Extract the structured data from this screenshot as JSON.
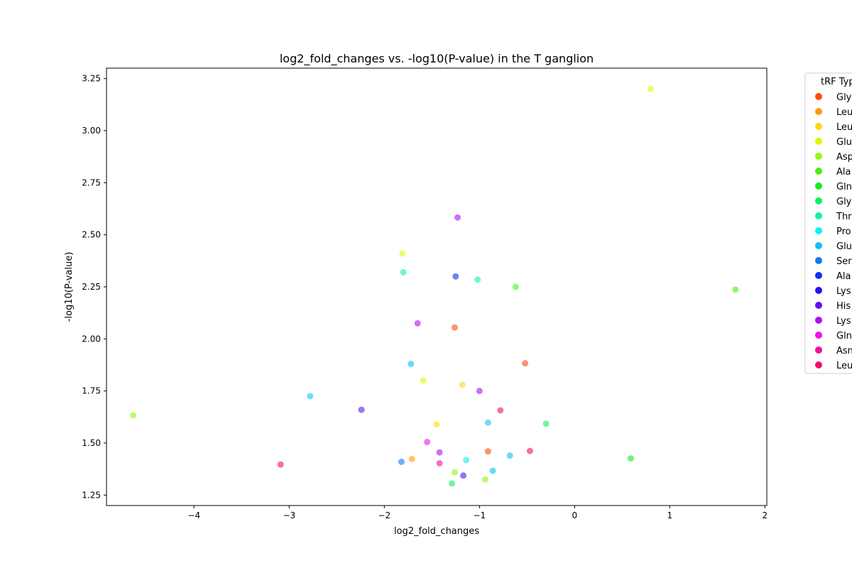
{
  "chart_data": {
    "type": "scatter",
    "title": "log2_fold_changes vs. -log10(P-value) in the T ganglion",
    "xlabel": "log2_fold_changes",
    "ylabel": "-log10(P-value)",
    "xlim": [
      -4.92,
      2.02
    ],
    "ylim": [
      1.2,
      3.3
    ],
    "xticks": [
      -4,
      -3,
      -2,
      -1,
      0,
      1,
      2
    ],
    "xtick_labels": [
      "−4",
      "−3",
      "−2",
      "−1",
      "0",
      "1",
      "2"
    ],
    "yticks": [
      1.25,
      1.5,
      1.75,
      2.0,
      2.25,
      2.5,
      2.75,
      3.0,
      3.25
    ],
    "ytick_labels": [
      "1.25",
      "1.50",
      "1.75",
      "2.00",
      "2.25",
      "2.50",
      "2.75",
      "3.00",
      "3.25"
    ],
    "grid": false,
    "legend_position": "outside-right",
    "legend_title": "tRF Typ",
    "legend": [
      {
        "label": "Gly",
        "color": "#ff4a10"
      },
      {
        "label": "Leu",
        "color": "#ff9a10"
      },
      {
        "label": "Leu",
        "color": "#ffd810"
      },
      {
        "label": "Glu",
        "color": "#d8f810"
      },
      {
        "label": "Asp",
        "color": "#90f810"
      },
      {
        "label": "Ala",
        "color": "#48f010"
      },
      {
        "label": "Gln",
        "color": "#10f018"
      },
      {
        "label": "Gly",
        "color": "#10f060"
      },
      {
        "label": "Thr",
        "color": "#10f0b0"
      },
      {
        "label": "Pro",
        "color": "#10f0f0"
      },
      {
        "label": "Glu",
        "color": "#10c0f0"
      },
      {
        "label": "Ser",
        "color": "#1078f0"
      },
      {
        "label": "Ala",
        "color": "#1030f0"
      },
      {
        "label": "Lys",
        "color": "#2810f0"
      },
      {
        "label": "His",
        "color": "#6010f0"
      },
      {
        "label": "Lys",
        "color": "#b010f0"
      },
      {
        "label": "Gln",
        "color": "#f010f0"
      },
      {
        "label": "Asn",
        "color": "#f010a0"
      },
      {
        "label": "Leu",
        "color": "#f01060"
      }
    ],
    "points": [
      {
        "x": 0.8,
        "y": 3.2,
        "color": "#d8f810"
      },
      {
        "x": -1.23,
        "y": 2.583,
        "color": "#b010f0"
      },
      {
        "x": -1.81,
        "y": 2.41,
        "color": "#d8f810"
      },
      {
        "x": -1.8,
        "y": 2.32,
        "color": "#10f0b0"
      },
      {
        "x": -1.25,
        "y": 2.3,
        "color": "#1030f0"
      },
      {
        "x": -1.02,
        "y": 2.285,
        "color": "#10f0b0"
      },
      {
        "x": -0.62,
        "y": 2.25,
        "color": "#48f010"
      },
      {
        "x": 1.69,
        "y": 2.237,
        "color": "#48f010"
      },
      {
        "x": -1.65,
        "y": 2.075,
        "color": "#b010f0"
      },
      {
        "x": -1.26,
        "y": 2.055,
        "color": "#ff4a10"
      },
      {
        "x": -1.72,
        "y": 1.88,
        "color": "#10c0f0"
      },
      {
        "x": -0.52,
        "y": 1.883,
        "color": "#ff4a10"
      },
      {
        "x": -1.59,
        "y": 1.8,
        "color": "#d8f810"
      },
      {
        "x": -1.18,
        "y": 1.78,
        "color": "#ffd810"
      },
      {
        "x": -1.0,
        "y": 1.75,
        "color": "#b010f0"
      },
      {
        "x": -2.78,
        "y": 1.725,
        "color": "#10c0f0"
      },
      {
        "x": -4.64,
        "y": 1.633,
        "color": "#90f810"
      },
      {
        "x": -2.24,
        "y": 1.66,
        "color": "#6010f0"
      },
      {
        "x": -0.78,
        "y": 1.657,
        "color": "#f01060"
      },
      {
        "x": -1.45,
        "y": 1.59,
        "color": "#ffd810"
      },
      {
        "x": -0.91,
        "y": 1.598,
        "color": "#10c0f0"
      },
      {
        "x": -0.3,
        "y": 1.593,
        "color": "#10f060"
      },
      {
        "x": -1.55,
        "y": 1.505,
        "color": "#f010f0"
      },
      {
        "x": -1.42,
        "y": 1.455,
        "color": "#b010f0"
      },
      {
        "x": -0.91,
        "y": 1.46,
        "color": "#ff4a10"
      },
      {
        "x": -0.47,
        "y": 1.462,
        "color": "#f01060"
      },
      {
        "x": -0.68,
        "y": 1.44,
        "color": "#10c0f0"
      },
      {
        "x": -1.71,
        "y": 1.423,
        "color": "#ff9a10"
      },
      {
        "x": -1.14,
        "y": 1.418,
        "color": "#10f0f0"
      },
      {
        "x": 0.59,
        "y": 1.426,
        "color": "#10f018"
      },
      {
        "x": -1.82,
        "y": 1.41,
        "color": "#1078f0"
      },
      {
        "x": -1.42,
        "y": 1.403,
        "color": "#f010a0"
      },
      {
        "x": -3.09,
        "y": 1.397,
        "color": "#f01060"
      },
      {
        "x": -0.86,
        "y": 1.367,
        "color": "#10c0f0"
      },
      {
        "x": -1.26,
        "y": 1.36,
        "color": "#90f810"
      },
      {
        "x": -1.17,
        "y": 1.344,
        "color": "#6010f0"
      },
      {
        "x": -0.94,
        "y": 1.325,
        "color": "#90f810"
      },
      {
        "x": -1.29,
        "y": 1.306,
        "color": "#10f060"
      }
    ]
  }
}
